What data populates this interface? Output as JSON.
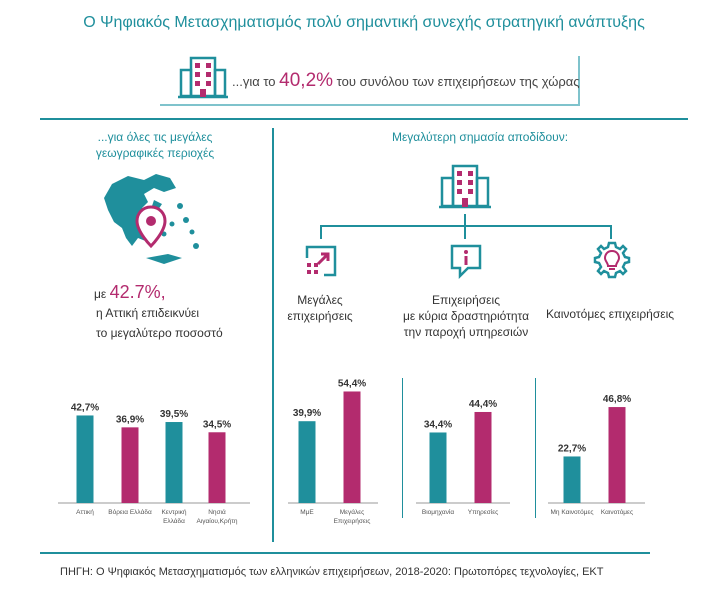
{
  "header": {
    "title": "Ο Ψηφιακός Μετασχηματισμός πολύ σημαντική συνεχής στρατηγική ανάπτυξης",
    "subtitle_prefix": "...για το",
    "subtitle_highlight": "40,2%",
    "subtitle_suffix": "του συνόλου των επιχειρήσεων  της χώρας"
  },
  "left_panel": {
    "heading_line1": "...για όλες τις μεγάλες",
    "heading_line2": "γεωγραφικές περιοχές",
    "stat_prefix": "με",
    "stat_highlight": "42.7%,",
    "stat_line2": "η  Αττική επιδεικνύει",
    "stat_line3": "το μεγαλύτερο ποσοστό"
  },
  "right_panel": {
    "heading": "Μεγαλύτερη σημασία αποδίδουν:",
    "cat1_line1": "Μεγάλες",
    "cat1_line2": "επιχειρήσεις",
    "cat2_line1": "Επιχειρήσεις",
    "cat2_line2": "με κύρια δραστηριότητα",
    "cat2_line3": "την παροχή υπηρεσιών",
    "cat3_line1": "Καινοτόμες επιχειρήσεις"
  },
  "footer": {
    "source": "ΠΗΓΗ: Ο Ψηφιακός Μετασχηματισμός των ελληνικών επιχειρήσεων, 2018-2020: Πρωτοπόρες τεχνολογίες, ΕΚΤ"
  },
  "colors": {
    "teal": "#1f8f9c",
    "magenta": "#b32b6e"
  },
  "icons": [
    "building-icon",
    "greece-map-icon",
    "location-pin-icon",
    "expand-arrow-icon",
    "info-bubble-icon",
    "lightbulb-gear-icon"
  ],
  "chart_data": [
    {
      "type": "bar",
      "categories": [
        "Αττική",
        "Βόρεια Ελλάδα",
        "Κεντρική Ελλάδα",
        "Νησιά Αιγαίου,Κρήτη"
      ],
      "values": [
        42.7,
        36.9,
        39.5,
        34.5
      ],
      "value_labels": [
        "42,7%",
        "36,9%",
        "39,5%",
        "34,5%"
      ],
      "colors": [
        "#1f8f9c",
        "#b32b6e",
        "#1f8f9c",
        "#b32b6e"
      ],
      "ylim": [
        0,
        60
      ]
    },
    {
      "type": "bar",
      "categories": [
        "ΜμΕ",
        "Μεγάλες Επιχειρήσεις"
      ],
      "values": [
        39.9,
        54.4
      ],
      "value_labels": [
        "39,9%",
        "54,4%"
      ],
      "colors": [
        "#1f8f9c",
        "#b32b6e"
      ],
      "ylim": [
        0,
        60
      ]
    },
    {
      "type": "bar",
      "categories": [
        "Βιομηχανία",
        "Υπηρεσίες"
      ],
      "values": [
        34.4,
        44.4
      ],
      "value_labels": [
        "34,4%",
        "44,4%"
      ],
      "colors": [
        "#1f8f9c",
        "#b32b6e"
      ],
      "ylim": [
        0,
        60
      ]
    },
    {
      "type": "bar",
      "categories": [
        "Μη Καινοτόμες",
        "Καινοτόμες"
      ],
      "values": [
        22.7,
        46.8
      ],
      "value_labels": [
        "22,7%",
        "46,8%"
      ],
      "colors": [
        "#1f8f9c",
        "#b32b6e"
      ],
      "ylim": [
        0,
        60
      ]
    }
  ]
}
